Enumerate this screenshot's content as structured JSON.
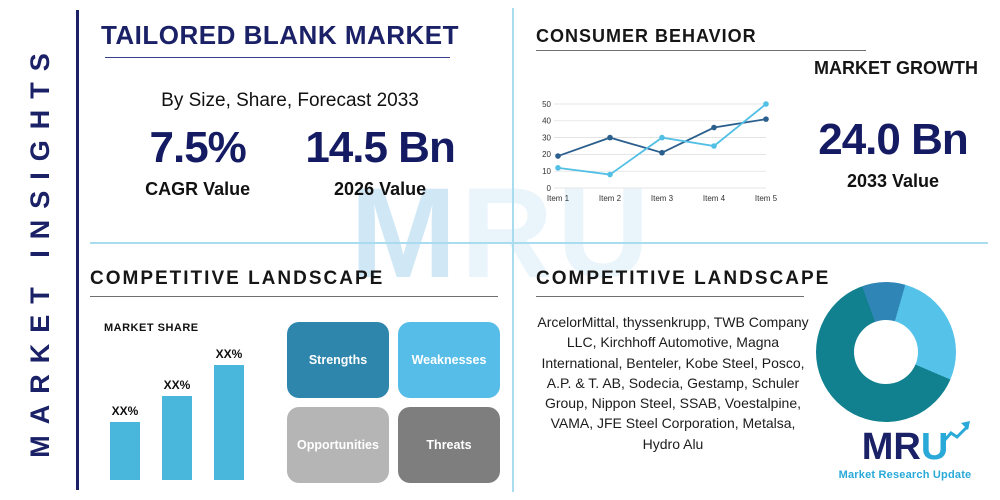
{
  "colors": {
    "navy": "#1b2166",
    "divider_blue": "#aadcf0",
    "underline_gray": "#6f6f6f",
    "bar_blue": "#49b6dc",
    "logo_teal": "#29a9d8"
  },
  "sidebar": {
    "label": "MARKET INSIGHTS"
  },
  "header": {
    "title": "TAILORED BLANK MARKET",
    "subtitle": "By Size, Share, Forecast 2033"
  },
  "stats": [
    {
      "value": "7.5%",
      "label": "CAGR Value"
    },
    {
      "value": "14.5 Bn",
      "label": "2026 Value"
    },
    {
      "value": "24.0 Bn",
      "label": "2033 Value"
    }
  ],
  "sections": {
    "consumer_behavior": "CONSUMER BEHAVIOR",
    "market_growth": "MARKET GROWTH",
    "competitive_landscape_left": "COMPETITIVE LANDSCAPE",
    "competitive_landscape_right": "COMPETITIVE LANDSCAPE"
  },
  "swot": {
    "items": [
      {
        "label": "Strengths",
        "color": "#2e86ad"
      },
      {
        "label": "Weaknesses",
        "color": "#56bde8"
      },
      {
        "label": "Opportunities",
        "color": "#b5b5b5"
      },
      {
        "label": "Threats",
        "color": "#7e7e7e"
      }
    ]
  },
  "competitive": {
    "companies": "ArcelorMittal, thyssenkrupp, TWB Company LLC, Kirchhoff Automotive, Magna International, Benteler, Kobe Steel, Posco, A.P. & T. AB, Sodecia, Gestamp, Schuler Group, Nippon Steel, SSAB, Voestalpine, VAMA, JFE Steel Corporation, Metalsa, Hydro Alu"
  },
  "watermark": {
    "primary": "M",
    "secondary": "RU"
  },
  "logo": {
    "m": "M",
    "r": "R",
    "u": "U",
    "tagline": "Market Research Update"
  },
  "chart_data": [
    {
      "type": "line",
      "title": "MARKET GROWTH",
      "x": [
        "Item 1",
        "Item 2",
        "Item 3",
        "Item 4",
        "Item 5"
      ],
      "series": [
        {
          "name": "dark-blue-series",
          "color": "#2b5f8e",
          "values": [
            19,
            30,
            21,
            36,
            41
          ]
        },
        {
          "name": "light-blue-series",
          "color": "#52bfe4",
          "values": [
            12,
            8,
            30,
            25,
            50
          ]
        }
      ],
      "ylim": [
        0,
        50
      ],
      "yticks": [
        0,
        10,
        20,
        30,
        40,
        50
      ],
      "grid": true,
      "legend": "none"
    },
    {
      "type": "bar",
      "title": "MARKET SHARE",
      "categories": [
        "XX%",
        "XX%",
        "XX%"
      ],
      "values": [
        30,
        44,
        60
      ],
      "color": "#49b6dc",
      "data_labels": "above-bars"
    },
    {
      "type": "pie",
      "donut": true,
      "start_angle": -20,
      "slices": [
        {
          "name": "segment-1",
          "value": 10,
          "color": "#2f85b5"
        },
        {
          "name": "segment-2",
          "value": 27,
          "color": "#55c3e9"
        },
        {
          "name": "segment-3",
          "value": 63,
          "color": "#11808f"
        }
      ]
    }
  ]
}
